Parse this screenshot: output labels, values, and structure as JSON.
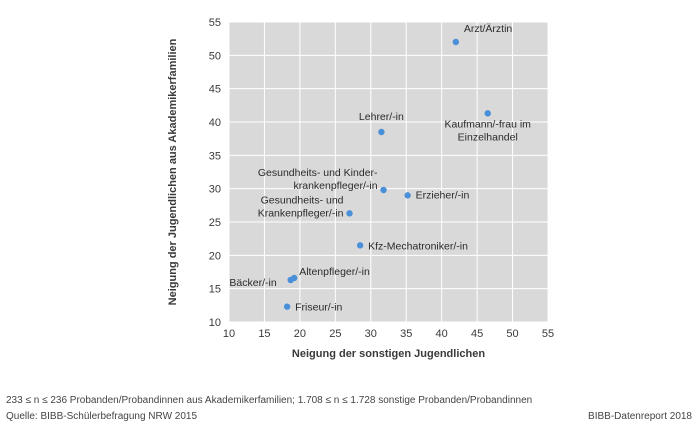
{
  "chart_data": {
    "type": "scatter",
    "xlabel": "Neigung der sonstigen Jugendlichen",
    "ylabel": "Neigung der Jugendlichen aus Akademikerfamilien",
    "xlim": [
      10,
      55
    ],
    "ylim": [
      10,
      55
    ],
    "xticks": [
      10,
      15,
      20,
      25,
      30,
      35,
      40,
      45,
      50,
      55
    ],
    "yticks": [
      10,
      15,
      20,
      25,
      30,
      35,
      40,
      45,
      50,
      55
    ],
    "grid": true,
    "point_color": "#4a90d9",
    "plot_background": "#d9d9d9",
    "points": [
      {
        "label": [
          "Arzt/Ärztin"
        ],
        "x": 42,
        "y": 52
      },
      {
        "label": [
          "Kaufmann/-frau im",
          "Einzelhandel"
        ],
        "x": 46.5,
        "y": 41.3
      },
      {
        "label": [
          "Lehrer/-in"
        ],
        "x": 31.5,
        "y": 38.5
      },
      {
        "label": [
          "Gesundheits- und Kinder-",
          "krankenpfleger/-in"
        ],
        "x": 31.8,
        "y": 29.8
      },
      {
        "label": [
          "Erzieher/-in"
        ],
        "x": 35.2,
        "y": 29
      },
      {
        "label": [
          "Gesundheits- und",
          "Krankenpfleger/-in"
        ],
        "x": 27,
        "y": 26.3
      },
      {
        "label": [
          "Kfz-Mechatroniker/-in"
        ],
        "x": 28.5,
        "y": 21.5
      },
      {
        "label": [
          "Altenpfleger/-in"
        ],
        "x": 19.2,
        "y": 16.6
      },
      {
        "label": [
          "Bäcker/-in"
        ],
        "x": 18.7,
        "y": 16.3
      },
      {
        "label": [
          "Friseur/-in"
        ],
        "x": 18.2,
        "y": 12.3
      }
    ]
  },
  "footer": {
    "note": "233 ≤ n ≤ 236 Probanden/Probandinnen aus Akademikerfamilien; 1.708 ≤ n ≤ 1.728 sonstige Probanden/Probandinnen",
    "source": "Quelle: BIBB-Schülerbefragung NRW 2015",
    "brand": "BIBB-Datenreport 2018"
  }
}
